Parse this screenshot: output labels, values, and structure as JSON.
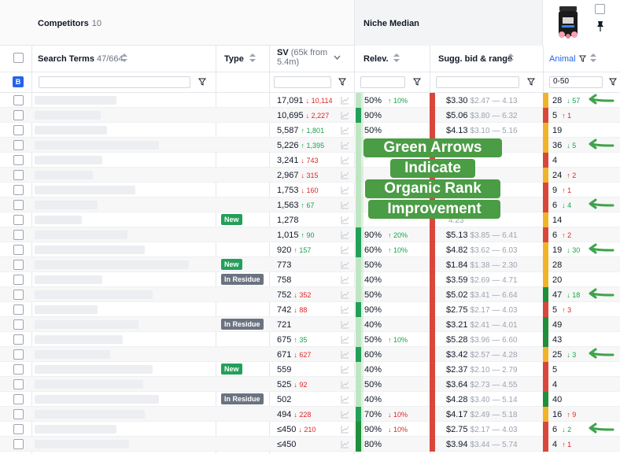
{
  "header": {
    "competitors_label": "Competitors",
    "competitors_count": "10",
    "niche_title": "Niche Median"
  },
  "columns": {
    "search_terms": "Search Terms",
    "search_terms_count": "47/664",
    "type": "Type",
    "sv": "SV",
    "sv_sub_1": "(65k from",
    "sv_sub_2": "5.4m)",
    "relev": "Relev.",
    "bid": "Sugg. bid & range",
    "animal": "Animal"
  },
  "filters": {
    "b_badge": "B",
    "animal_filter": "0-50"
  },
  "overlay": {
    "line1": "Green Arrows",
    "line2": "Indicate",
    "line3": "Organic Rank",
    "line4": "Improvement"
  },
  "colors": {
    "green": "#22a05a",
    "dark_green": "#1f8f3a",
    "red": "#d9473b",
    "orange": "#f0b429",
    "light_green": "#bfe6c3",
    "overlay_green": "#4a9c45"
  },
  "rows": [
    {
      "sv": "17,091",
      "sv_dir": "down",
      "sv_delta": "10,114",
      "rel": "50%",
      "rel_dir": "up",
      "rel_delta": "10%",
      "bid": "$3.30",
      "range": "$2.47 — 4.13",
      "rank": "28",
      "rank_dir": "down",
      "rank_delta": "57",
      "badge": "",
      "rel_color": "light",
      "bid_color": "red",
      "an_color": "orange",
      "arrow": true
    },
    {
      "sv": "10,695",
      "sv_dir": "down",
      "sv_delta": "2,227",
      "rel": "90%",
      "rel_dir": "",
      "rel_delta": "",
      "bid": "$5.06",
      "range": "$3.80 — 6.32",
      "rank": "5",
      "rank_dir": "up",
      "rank_delta": "1",
      "badge": "",
      "rel_color": "green",
      "bid_color": "red",
      "an_color": "red",
      "arrow": false
    },
    {
      "sv": "5,587",
      "sv_dir": "up",
      "sv_delta": "1,801",
      "rel": "50%",
      "rel_dir": "",
      "rel_delta": "",
      "bid": "$4.13",
      "range": "$3.10 — 5.16",
      "rank": "19",
      "rank_dir": "",
      "rank_delta": "",
      "badge": "",
      "rel_color": "light",
      "bid_color": "red",
      "an_color": "orange",
      "arrow": false
    },
    {
      "sv": "5,226",
      "sv_dir": "up",
      "sv_delta": "1,395",
      "rel": "",
      "rel_dir": "",
      "rel_delta": "",
      "bid": "",
      "range": "7.44",
      "rank": "36",
      "rank_dir": "down",
      "rank_delta": "5",
      "badge": "",
      "rel_color": "light",
      "bid_color": "red",
      "an_color": "orange",
      "arrow": true
    },
    {
      "sv": "3,241",
      "sv_dir": "down",
      "sv_delta": "743",
      "rel": "",
      "rel_dir": "",
      "rel_delta": "",
      "bid": "",
      "range": "",
      "rank": "4",
      "rank_dir": "",
      "rank_delta": "",
      "badge": "",
      "rel_color": "light",
      "bid_color": "red",
      "an_color": "red",
      "arrow": false
    },
    {
      "sv": "2,967",
      "sv_dir": "down",
      "sv_delta": "315",
      "rel": "",
      "rel_dir": "",
      "rel_delta": "",
      "bid": "",
      "range": "4.24",
      "rank": "24",
      "rank_dir": "up",
      "rank_delta": "2",
      "badge": "",
      "rel_color": "light",
      "bid_color": "red",
      "an_color": "orange",
      "arrow": false
    },
    {
      "sv": "1,753",
      "sv_dir": "down",
      "sv_delta": "160",
      "rel": "",
      "rel_dir": "",
      "rel_delta": "",
      "bid": "",
      "range": ".11",
      "rank": "9",
      "rank_dir": "up",
      "rank_delta": "1",
      "badge": "",
      "rel_color": "light",
      "bid_color": "red",
      "an_color": "red",
      "arrow": false
    },
    {
      "sv": "1,563",
      "sv_dir": "up",
      "sv_delta": "67",
      "rel": "",
      "rel_dir": "",
      "rel_delta": "",
      "bid": "",
      "range": "",
      "rank": "6",
      "rank_dir": "down",
      "rank_delta": "4",
      "badge": "",
      "rel_color": "light",
      "bid_color": "red",
      "an_color": "red",
      "arrow": true
    },
    {
      "sv": "1,278",
      "sv_dir": "",
      "sv_delta": "",
      "rel": "",
      "rel_dir": "",
      "rel_delta": "",
      "bid": "",
      "range": "4.23",
      "rank": "14",
      "rank_dir": "",
      "rank_delta": "",
      "badge": "New",
      "rel_color": "light",
      "bid_color": "red",
      "an_color": "orange",
      "arrow": false
    },
    {
      "sv": "1,015",
      "sv_dir": "up",
      "sv_delta": "90",
      "rel": "90%",
      "rel_dir": "up",
      "rel_delta": "20%",
      "bid": "$5.13",
      "range": "$3.85 — 6.41",
      "rank": "6",
      "rank_dir": "up",
      "rank_delta": "2",
      "badge": "",
      "rel_color": "green",
      "bid_color": "red",
      "an_color": "red",
      "arrow": false
    },
    {
      "sv": "920",
      "sv_dir": "up",
      "sv_delta": "157",
      "rel": "60%",
      "rel_dir": "up",
      "rel_delta": "10%",
      "bid": "$4.82",
      "range": "$3.62 — 6.03",
      "rank": "19",
      "rank_dir": "down",
      "rank_delta": "30",
      "badge": "",
      "rel_color": "green",
      "bid_color": "red",
      "an_color": "orange",
      "arrow": true
    },
    {
      "sv": "773",
      "sv_dir": "",
      "sv_delta": "",
      "rel": "50%",
      "rel_dir": "",
      "rel_delta": "",
      "bid": "$1.84",
      "range": "$1.38 — 2.30",
      "rank": "28",
      "rank_dir": "",
      "rank_delta": "",
      "badge": "New",
      "rel_color": "light",
      "bid_color": "red",
      "an_color": "orange",
      "arrow": false
    },
    {
      "sv": "758",
      "sv_dir": "",
      "sv_delta": "",
      "rel": "40%",
      "rel_dir": "",
      "rel_delta": "",
      "bid": "$3.59",
      "range": "$2.69 — 4.71",
      "rank": "20",
      "rank_dir": "",
      "rank_delta": "",
      "badge": "In Residue",
      "rel_color": "light",
      "bid_color": "red",
      "an_color": "orange",
      "arrow": false
    },
    {
      "sv": "752",
      "sv_dir": "down",
      "sv_delta": "352",
      "rel": "50%",
      "rel_dir": "",
      "rel_delta": "",
      "bid": "$5.02",
      "range": "$3.41 — 6.64",
      "rank": "47",
      "rank_dir": "down",
      "rank_delta": "18",
      "badge": "",
      "rel_color": "light",
      "bid_color": "red",
      "an_color": "dgreen",
      "arrow": true
    },
    {
      "sv": "742",
      "sv_dir": "down",
      "sv_delta": "88",
      "rel": "90%",
      "rel_dir": "",
      "rel_delta": "",
      "bid": "$2.75",
      "range": "$2.17 — 4.03",
      "rank": "5",
      "rank_dir": "up",
      "rank_delta": "3",
      "badge": "",
      "rel_color": "green",
      "bid_color": "red",
      "an_color": "red",
      "arrow": false
    },
    {
      "sv": "721",
      "sv_dir": "",
      "sv_delta": "",
      "rel": "40%",
      "rel_dir": "",
      "rel_delta": "",
      "bid": "$3.21",
      "range": "$2.41 — 4.01",
      "rank": "49",
      "rank_dir": "",
      "rank_delta": "",
      "badge": "In Residue",
      "rel_color": "light",
      "bid_color": "red",
      "an_color": "dgreen",
      "arrow": false
    },
    {
      "sv": "675",
      "sv_dir": "up",
      "sv_delta": "35",
      "rel": "50%",
      "rel_dir": "up",
      "rel_delta": "10%",
      "bid": "$5.28",
      "range": "$3.96 — 6.60",
      "rank": "43",
      "rank_dir": "",
      "rank_delta": "",
      "badge": "",
      "rel_color": "light",
      "bid_color": "red",
      "an_color": "dgreen",
      "arrow": false
    },
    {
      "sv": "671",
      "sv_dir": "down",
      "sv_delta": "627",
      "rel": "60%",
      "rel_dir": "",
      "rel_delta": "",
      "bid": "$3.42",
      "range": "$2.57 — 4.28",
      "rank": "25",
      "rank_dir": "down",
      "rank_delta": "3",
      "badge": "",
      "rel_color": "green",
      "bid_color": "red",
      "an_color": "orange",
      "arrow": true
    },
    {
      "sv": "559",
      "sv_dir": "",
      "sv_delta": "",
      "rel": "40%",
      "rel_dir": "",
      "rel_delta": "",
      "bid": "$2.37",
      "range": "$2.10 — 2.79",
      "rank": "5",
      "rank_dir": "",
      "rank_delta": "",
      "badge": "New",
      "rel_color": "light",
      "bid_color": "red",
      "an_color": "red",
      "arrow": false
    },
    {
      "sv": "525",
      "sv_dir": "down",
      "sv_delta": "92",
      "rel": "50%",
      "rel_dir": "",
      "rel_delta": "",
      "bid": "$3.64",
      "range": "$2.73 — 4.55",
      "rank": "4",
      "rank_dir": "",
      "rank_delta": "",
      "badge": "",
      "rel_color": "light",
      "bid_color": "red",
      "an_color": "red",
      "arrow": false
    },
    {
      "sv": "502",
      "sv_dir": "",
      "sv_delta": "",
      "rel": "40%",
      "rel_dir": "",
      "rel_delta": "",
      "bid": "$4.28",
      "range": "$3.40 — 5.14",
      "rank": "40",
      "rank_dir": "",
      "rank_delta": "",
      "badge": "In Residue",
      "rel_color": "light",
      "bid_color": "red",
      "an_color": "dgreen",
      "arrow": false
    },
    {
      "sv": "494",
      "sv_dir": "down",
      "sv_delta": "228",
      "rel": "70%",
      "rel_dir": "down",
      "rel_delta": "10%",
      "bid": "$4.17",
      "range": "$2.49 — 5.18",
      "rank": "16",
      "rank_dir": "up",
      "rank_delta": "9",
      "badge": "",
      "rel_color": "green",
      "bid_color": "red",
      "an_color": "orange",
      "arrow": false
    },
    {
      "sv": "≤450",
      "sv_dir": "down",
      "sv_delta": "210",
      "rel": "90%",
      "rel_dir": "down",
      "rel_delta": "10%",
      "bid": "$2.75",
      "range": "$2.17 — 4.03",
      "rank": "6",
      "rank_dir": "down",
      "rank_delta": "2",
      "badge": "",
      "rel_color": "dgreen",
      "bid_color": "red",
      "an_color": "red",
      "arrow": true
    },
    {
      "sv": "≤450",
      "sv_dir": "",
      "sv_delta": "",
      "rel": "80%",
      "rel_dir": "",
      "rel_delta": "",
      "bid": "$3.94",
      "range": "$3.44 — 5.74",
      "rank": "4",
      "rank_dir": "up",
      "rank_delta": "1",
      "badge": "",
      "rel_color": "dgreen",
      "bid_color": "red",
      "an_color": "red",
      "arrow": false
    }
  ]
}
